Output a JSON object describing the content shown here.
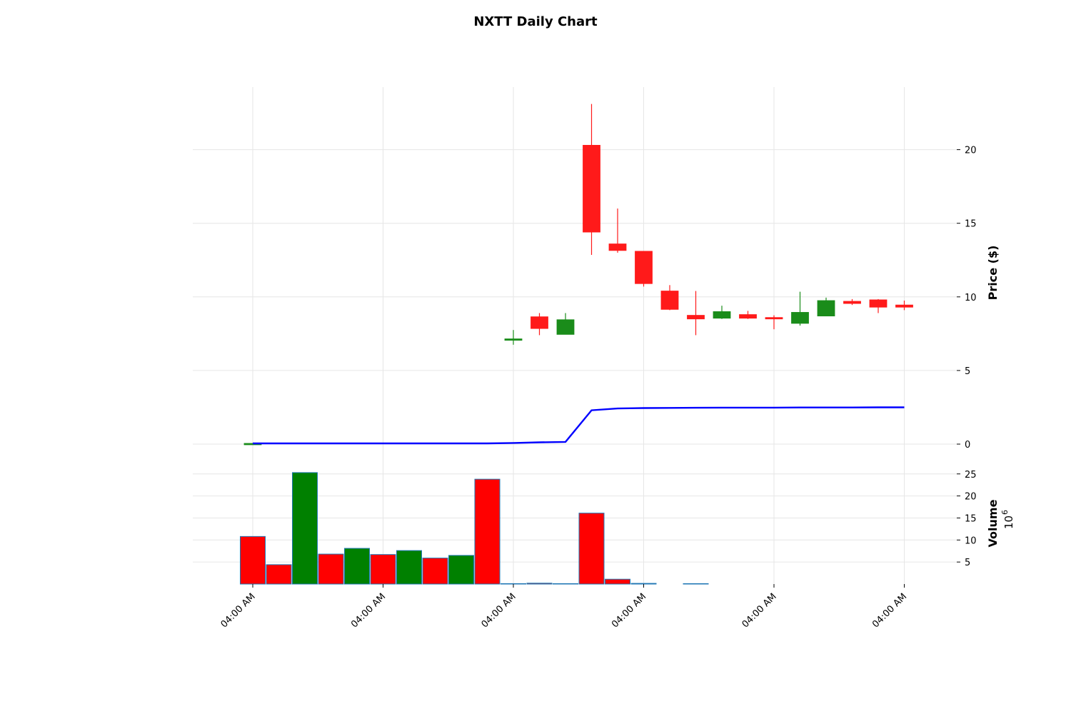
{
  "chart_data": {
    "type": "candlestick",
    "title": "NXTT Daily Chart",
    "x_tick_labels": [
      "04:00 AM",
      "04:00 AM",
      "04:00 AM",
      "04:00 AM",
      "04:00 AM",
      "04:00 AM"
    ],
    "x_tick_indices": [
      0,
      5,
      10,
      15,
      20,
      25
    ],
    "price_panel": {
      "ylabel": "Price ($)",
      "yticks": [
        0,
        5,
        10,
        15,
        20
      ],
      "ylim": [
        -1.2,
        24.2
      ],
      "grid": true,
      "candles": [
        {
          "i": 0,
          "open": 0.05,
          "high": 0.05,
          "low": 0.05,
          "close": 0.05
        },
        {
          "i": 10,
          "open": 7.05,
          "high": 7.75,
          "low": 6.75,
          "close": 7.15
        },
        {
          "i": 11,
          "open": 8.65,
          "high": 8.9,
          "low": 7.4,
          "close": 7.85
        },
        {
          "i": 12,
          "open": 7.45,
          "high": 8.9,
          "low": 7.45,
          "close": 8.45
        },
        {
          "i": 13,
          "open": 20.3,
          "high": 23.1,
          "low": 12.85,
          "close": 14.4
        },
        {
          "i": 14,
          "open": 13.6,
          "high": 16.0,
          "low": 13.0,
          "close": 13.15
        },
        {
          "i": 15,
          "open": 13.1,
          "high": 13.1,
          "low": 10.7,
          "close": 10.9
        },
        {
          "i": 16,
          "open": 10.4,
          "high": 10.8,
          "low": 9.1,
          "close": 9.15
        },
        {
          "i": 17,
          "open": 8.75,
          "high": 10.4,
          "low": 7.4,
          "close": 8.5
        },
        {
          "i": 18,
          "open": 8.55,
          "high": 9.4,
          "low": 8.5,
          "close": 9.0
        },
        {
          "i": 19,
          "open": 8.8,
          "high": 9.05,
          "low": 8.5,
          "close": 8.55
        },
        {
          "i": 20,
          "open": 8.6,
          "high": 8.75,
          "low": 7.8,
          "close": 8.5
        },
        {
          "i": 21,
          "open": 8.2,
          "high": 10.35,
          "low": 8.05,
          "close": 8.95
        },
        {
          "i": 22,
          "open": 8.7,
          "high": 9.95,
          "low": 8.7,
          "close": 9.75
        },
        {
          "i": 23,
          "open": 9.7,
          "high": 9.85,
          "low": 9.45,
          "close": 9.55
        },
        {
          "i": 24,
          "open": 9.8,
          "high": 9.85,
          "low": 8.9,
          "close": 9.3
        },
        {
          "i": 25,
          "open": 9.45,
          "high": 9.75,
          "low": 9.1,
          "close": 9.3
        }
      ],
      "line": {
        "color": "#0000ff",
        "points": [
          {
            "i": 0,
            "v": 0.05
          },
          {
            "i": 1,
            "v": 0.05
          },
          {
            "i": 2,
            "v": 0.05
          },
          {
            "i": 3,
            "v": 0.05
          },
          {
            "i": 4,
            "v": 0.05
          },
          {
            "i": 5,
            "v": 0.05
          },
          {
            "i": 6,
            "v": 0.05
          },
          {
            "i": 7,
            "v": 0.05
          },
          {
            "i": 8,
            "v": 0.05
          },
          {
            "i": 9,
            "v": 0.05
          },
          {
            "i": 10,
            "v": 0.08
          },
          {
            "i": 11,
            "v": 0.12
          },
          {
            "i": 12,
            "v": 0.15
          },
          {
            "i": 13,
            "v": 2.3
          },
          {
            "i": 14,
            "v": 2.42
          },
          {
            "i": 15,
            "v": 2.45
          },
          {
            "i": 16,
            "v": 2.46
          },
          {
            "i": 17,
            "v": 2.47
          },
          {
            "i": 18,
            "v": 2.48
          },
          {
            "i": 19,
            "v": 2.48
          },
          {
            "i": 20,
            "v": 2.48
          },
          {
            "i": 21,
            "v": 2.49
          },
          {
            "i": 22,
            "v": 2.49
          },
          {
            "i": 23,
            "v": 2.49
          },
          {
            "i": 24,
            "v": 2.5
          },
          {
            "i": 25,
            "v": 2.5
          }
        ]
      }
    },
    "volume_panel": {
      "ylabel": "Volume",
      "yunit": "10",
      "yunit_exponent": "6",
      "yticks": [
        5,
        10,
        15,
        20,
        25
      ],
      "ylim": [
        0,
        27
      ],
      "grid": true,
      "bars": [
        {
          "i": 0,
          "v": 10.8,
          "dir": "down"
        },
        {
          "i": 1,
          "v": 4.4,
          "dir": "down"
        },
        {
          "i": 2,
          "v": 25.3,
          "dir": "up"
        },
        {
          "i": 3,
          "v": 6.8,
          "dir": "down"
        },
        {
          "i": 4,
          "v": 8.1,
          "dir": "up"
        },
        {
          "i": 5,
          "v": 6.7,
          "dir": "down"
        },
        {
          "i": 6,
          "v": 7.6,
          "dir": "up"
        },
        {
          "i": 7,
          "v": 5.9,
          "dir": "down"
        },
        {
          "i": 8,
          "v": 6.5,
          "dir": "up"
        },
        {
          "i": 9,
          "v": 23.8,
          "dir": "down"
        },
        {
          "i": 10,
          "v": 0.05,
          "dir": "up"
        },
        {
          "i": 11,
          "v": 0.2,
          "dir": "down"
        },
        {
          "i": 12,
          "v": 0.05,
          "dir": "up"
        },
        {
          "i": 13,
          "v": 16.1,
          "dir": "down"
        },
        {
          "i": 14,
          "v": 1.1,
          "dir": "down"
        },
        {
          "i": 15,
          "v": 0.15,
          "dir": "down"
        },
        {
          "i": 17,
          "v": 0.05,
          "dir": "down"
        }
      ]
    },
    "colors": {
      "up": "#008000",
      "down": "#ff0000",
      "candle_up": "#1a8c1a",
      "candle_down": "#ff1a1a",
      "volume_edge": "#1f77b4"
    }
  }
}
